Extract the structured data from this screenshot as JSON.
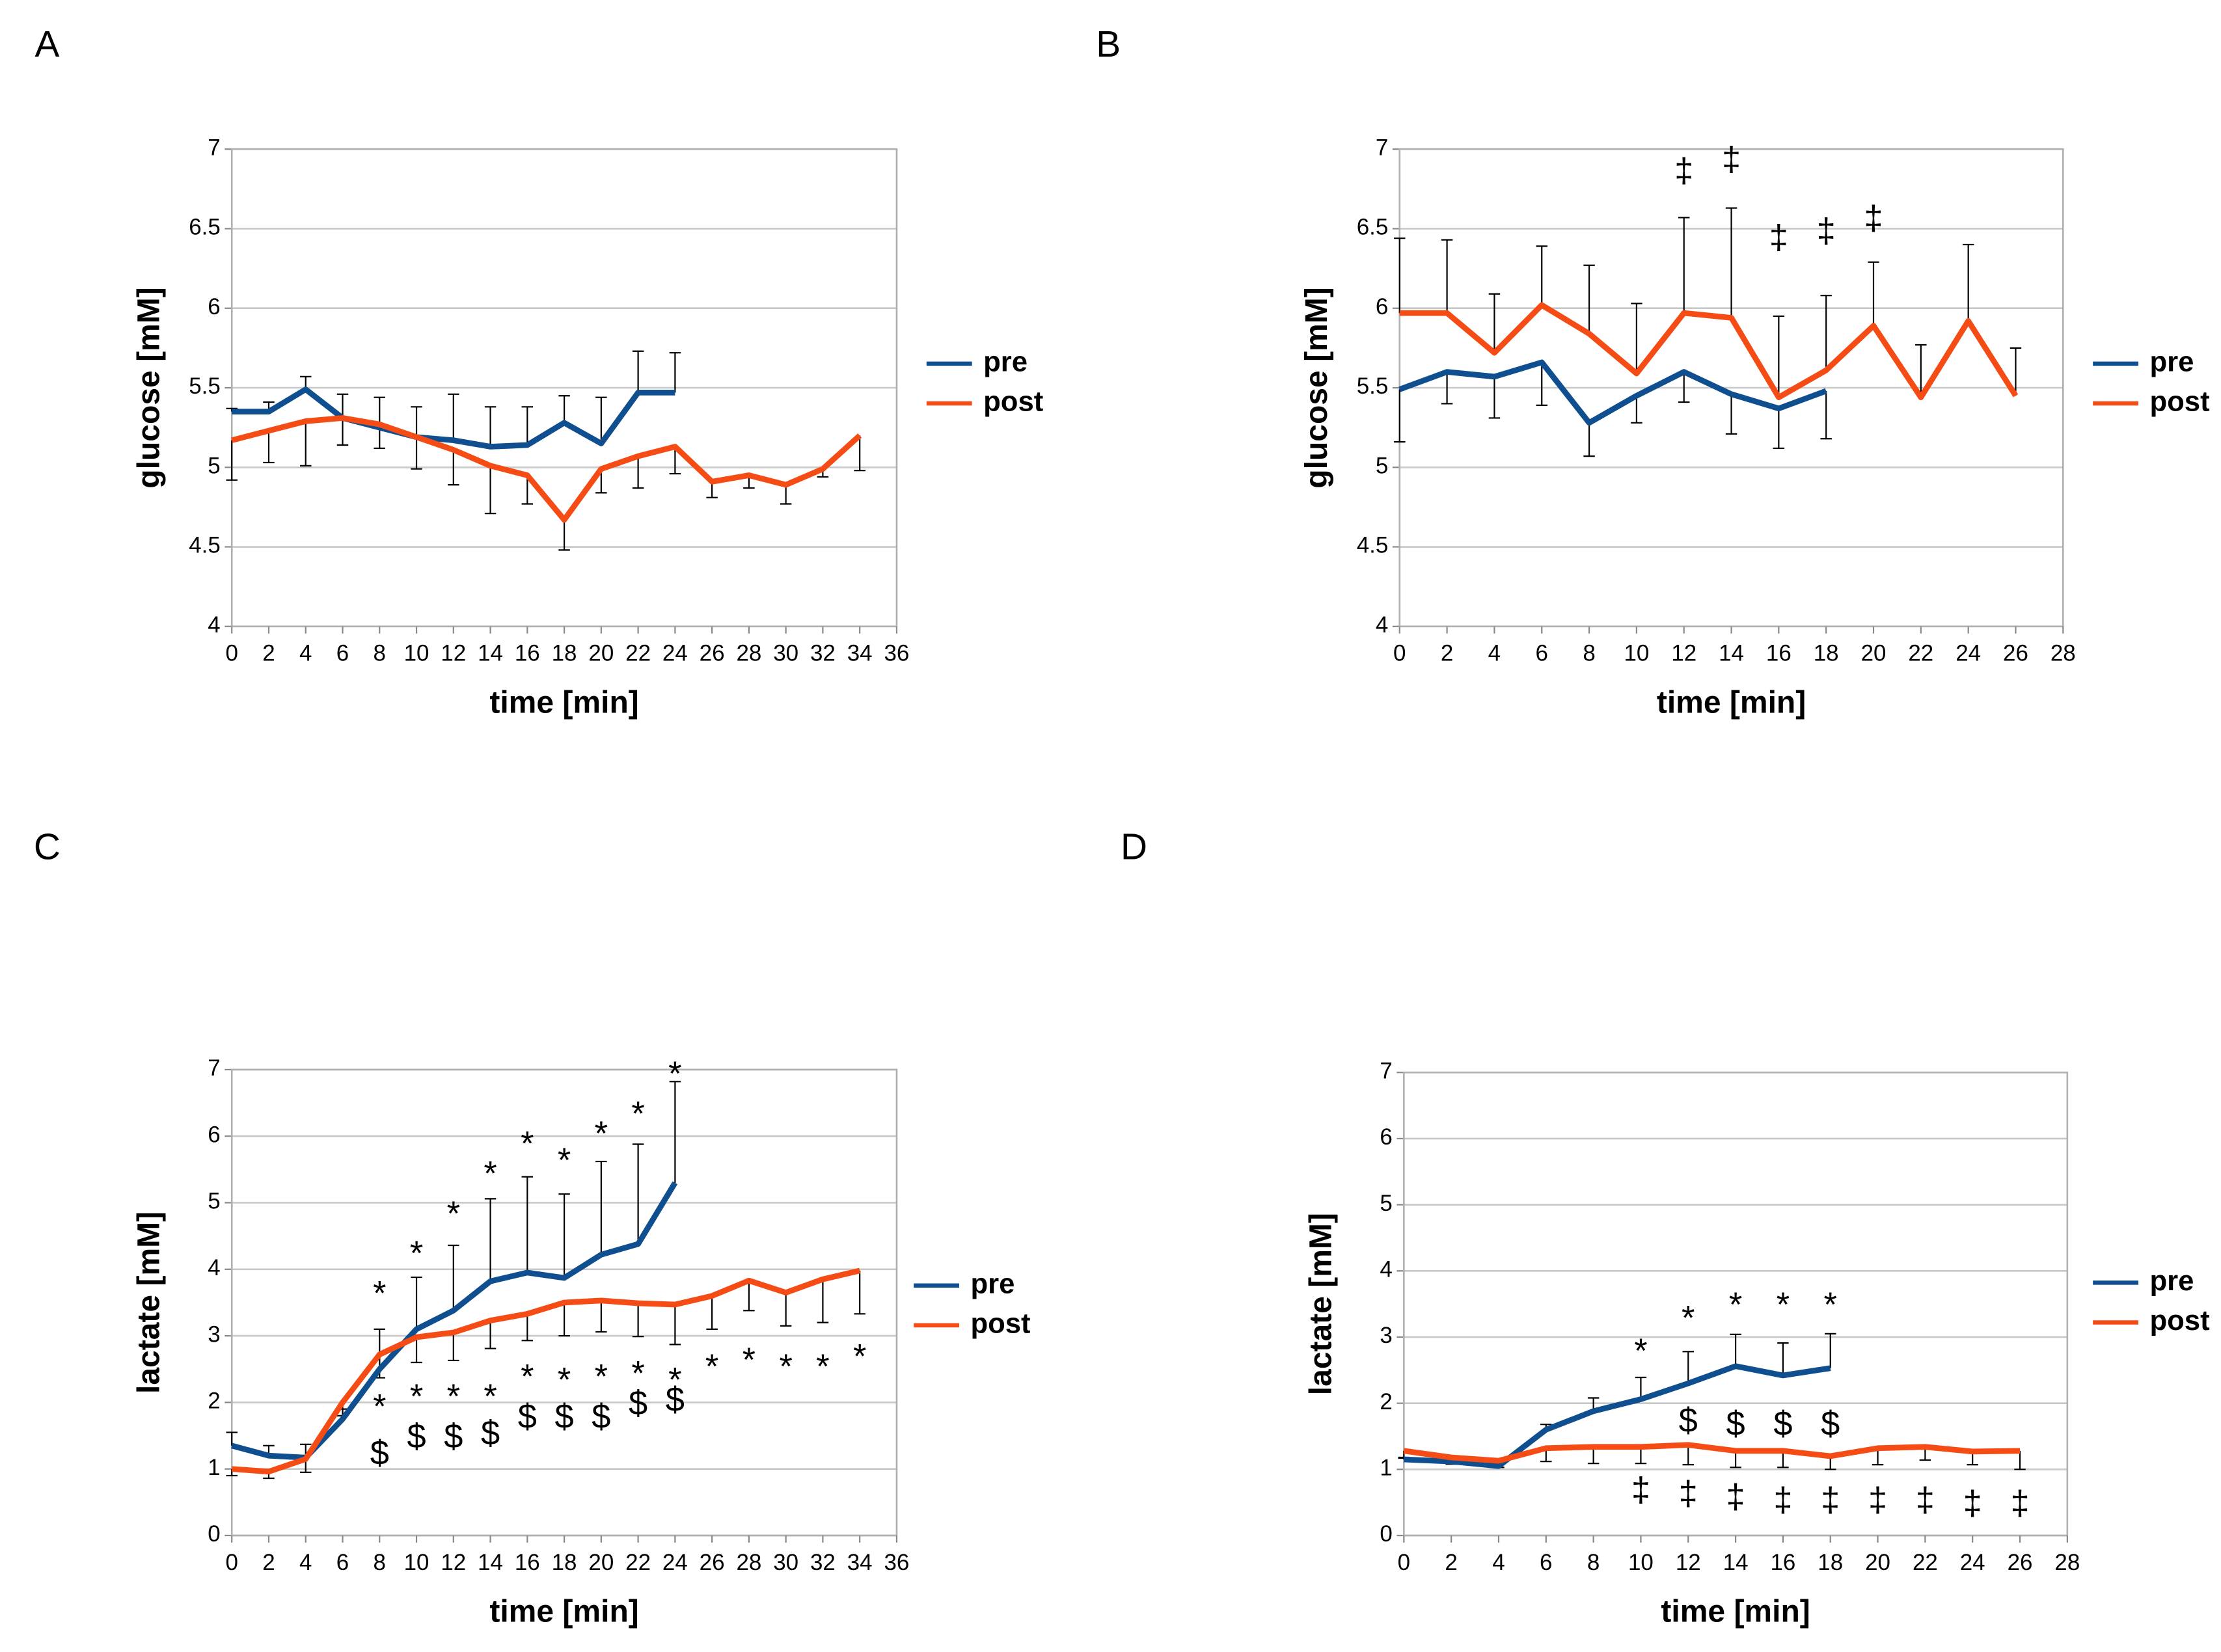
{
  "chart_data": [
    {
      "type": "line",
      "panel": "A",
      "xlabel": "time [min]",
      "ylabel": "glucose [mM]",
      "xlim": [
        0,
        36
      ],
      "xticks": [
        0,
        2,
        4,
        6,
        8,
        10,
        12,
        14,
        16,
        18,
        20,
        22,
        24,
        26,
        28,
        30,
        32,
        34,
        36
      ],
      "ylim": [
        4,
        7
      ],
      "yticks": [
        4,
        4.5,
        5,
        5.5,
        6,
        6.5,
        7
      ],
      "grid": true,
      "legend": "right",
      "series": [
        {
          "name": "pre",
          "color": "#0f4f8f",
          "error_side": "up",
          "x": [
            0,
            2,
            4,
            6,
            8,
            10,
            12,
            14,
            16,
            18,
            20,
            22,
            24
          ],
          "values": [
            5.35,
            5.35,
            5.49,
            5.31,
            5.25,
            5.19,
            5.17,
            5.13,
            5.14,
            5.28,
            5.15,
            5.47,
            5.47
          ],
          "errors": [
            0.02,
            0.06,
            0.08,
            0.15,
            0.19,
            0.19,
            0.29,
            0.25,
            0.24,
            0.17,
            0.29,
            0.26,
            0.25
          ]
        },
        {
          "name": "post",
          "color": "#f44c14",
          "error_side": "down",
          "x": [
            0,
            2,
            4,
            6,
            8,
            10,
            12,
            14,
            16,
            18,
            20,
            22,
            24,
            26,
            28,
            30,
            32,
            34
          ],
          "values": [
            5.17,
            5.23,
            5.29,
            5.31,
            5.27,
            5.19,
            5.11,
            5.01,
            4.95,
            4.67,
            4.99,
            5.07,
            5.13,
            4.91,
            4.95,
            4.89,
            4.99,
            5.2
          ],
          "errors": [
            0.25,
            0.2,
            0.28,
            0.17,
            0.15,
            0.2,
            0.22,
            0.3,
            0.18,
            0.19,
            0.15,
            0.2,
            0.17,
            0.1,
            0.08,
            0.12,
            0.05,
            0.22
          ]
        }
      ],
      "annotations": []
    },
    {
      "type": "line",
      "panel": "B",
      "xlabel": "time [min]",
      "ylabel": "glucose [mM]",
      "xlim": [
        0,
        28
      ],
      "xticks": [
        0,
        2,
        4,
        6,
        8,
        10,
        12,
        14,
        16,
        18,
        20,
        22,
        24,
        26,
        28
      ],
      "ylim": [
        4,
        7
      ],
      "yticks": [
        4,
        4.5,
        5,
        5.5,
        6,
        6.5,
        7
      ],
      "grid": true,
      "legend": "right",
      "series": [
        {
          "name": "pre",
          "color": "#0f4f8f",
          "error_side": "down",
          "x": [
            0,
            2,
            4,
            6,
            8,
            10,
            12,
            14,
            16,
            18
          ],
          "values": [
            5.49,
            5.6,
            5.57,
            5.66,
            5.28,
            5.45,
            5.6,
            5.46,
            5.37,
            5.48
          ],
          "errors": [
            0.33,
            0.2,
            0.26,
            0.27,
            0.21,
            0.17,
            0.19,
            0.25,
            0.25,
            0.3
          ]
        },
        {
          "name": "post",
          "color": "#f44c14",
          "error_side": "up",
          "x": [
            0,
            2,
            4,
            6,
            8,
            10,
            12,
            14,
            16,
            18,
            20,
            22,
            24,
            26
          ],
          "values": [
            5.97,
            5.97,
            5.72,
            6.02,
            5.84,
            5.59,
            5.97,
            5.94,
            5.44,
            5.61,
            5.89,
            5.44,
            5.92,
            5.45
          ],
          "errors": [
            0.47,
            0.46,
            0.37,
            0.37,
            0.43,
            0.44,
            0.6,
            0.69,
            0.51,
            0.47,
            0.4,
            0.33,
            0.48,
            0.3
          ]
        }
      ],
      "annotations": [
        {
          "text": "‡",
          "x": [
            12,
            14,
            16,
            18,
            20
          ],
          "y": [
            6.85,
            6.92,
            6.43,
            6.47,
            6.55
          ]
        }
      ]
    },
    {
      "type": "line",
      "panel": "C",
      "xlabel": "time [min]",
      "ylabel": "lactate [mM]",
      "xlim": [
        0,
        36
      ],
      "xticks": [
        0,
        2,
        4,
        6,
        8,
        10,
        12,
        14,
        16,
        18,
        20,
        22,
        24,
        26,
        28,
        30,
        32,
        34,
        36
      ],
      "ylim": [
        0,
        7
      ],
      "yticks": [
        0,
        1,
        2,
        3,
        4,
        5,
        6,
        7
      ],
      "grid": true,
      "legend": "right",
      "series": [
        {
          "name": "pre",
          "color": "#0f4f8f",
          "error_side": "up",
          "x": [
            0,
            2,
            4,
            6,
            8,
            10,
            12,
            14,
            16,
            18,
            20,
            22,
            24
          ],
          "values": [
            1.35,
            1.2,
            1.17,
            1.75,
            2.5,
            3.1,
            3.38,
            3.82,
            3.95,
            3.87,
            4.22,
            4.38,
            5.3
          ],
          "errors": [
            0.2,
            0.15,
            0.2,
            0.15,
            0.6,
            0.78,
            0.98,
            1.24,
            1.44,
            1.26,
            1.4,
            1.5,
            1.52
          ]
        },
        {
          "name": "post",
          "color": "#f44c14",
          "error_side": "down",
          "x": [
            0,
            2,
            4,
            6,
            8,
            10,
            12,
            14,
            16,
            18,
            20,
            22,
            24,
            26,
            28,
            30,
            32,
            34
          ],
          "values": [
            1.0,
            0.96,
            1.15,
            2.0,
            2.72,
            2.98,
            3.05,
            3.23,
            3.33,
            3.5,
            3.53,
            3.49,
            3.47,
            3.6,
            3.83,
            3.65,
            3.85,
            3.98
          ],
          "errors": [
            0.1,
            0.1,
            0.2,
            0.2,
            0.35,
            0.38,
            0.42,
            0.42,
            0.4,
            0.5,
            0.47,
            0.5,
            0.6,
            0.5,
            0.45,
            0.5,
            0.65,
            0.65
          ]
        }
      ],
      "annotations": [
        {
          "text": "*",
          "x": [
            8,
            10,
            12,
            14,
            16,
            18,
            20,
            22,
            24
          ],
          "y": [
            3.6,
            4.2,
            4.8,
            5.4,
            5.85,
            5.6,
            6.0,
            6.3,
            6.9
          ]
        },
        {
          "text": "*",
          "x": [
            8,
            10,
            12,
            14,
            16,
            18,
            20,
            22,
            24,
            26,
            28,
            30,
            32,
            34
          ],
          "y": [
            1.9,
            2.05,
            2.05,
            2.05,
            2.35,
            2.3,
            2.35,
            2.4,
            2.3,
            2.5,
            2.6,
            2.5,
            2.5,
            2.65
          ]
        },
        {
          "text": "$",
          "x": [
            8,
            10,
            12,
            14,
            16,
            18,
            20,
            22,
            24
          ],
          "y": [
            1.2,
            1.45,
            1.45,
            1.5,
            1.75,
            1.75,
            1.75,
            1.95,
            2.0
          ]
        }
      ]
    },
    {
      "type": "line",
      "panel": "D",
      "xlabel": "time [min]",
      "ylabel": "lactate [mM]",
      "xlim": [
        0,
        28
      ],
      "xticks": [
        0,
        2,
        4,
        6,
        8,
        10,
        12,
        14,
        16,
        18,
        20,
        22,
        24,
        26,
        28
      ],
      "ylim": [
        0,
        7
      ],
      "yticks": [
        0,
        1,
        2,
        3,
        4,
        5,
        6,
        7
      ],
      "grid": true,
      "legend": "right",
      "series": [
        {
          "name": "pre",
          "color": "#0f4f8f",
          "error_side": "up",
          "x": [
            0,
            2,
            4,
            6,
            8,
            10,
            12,
            14,
            16,
            18
          ],
          "values": [
            1.15,
            1.12,
            1.05,
            1.6,
            1.88,
            2.06,
            2.3,
            2.56,
            2.42,
            2.53
          ],
          "errors": [
            0.02,
            0.05,
            0.05,
            0.08,
            0.2,
            0.33,
            0.48,
            0.48,
            0.49,
            0.52
          ]
        },
        {
          "name": "post",
          "color": "#f44c14",
          "error_side": "down",
          "x": [
            0,
            2,
            4,
            6,
            8,
            10,
            12,
            14,
            16,
            18,
            20,
            22,
            24,
            26
          ],
          "values": [
            1.28,
            1.18,
            1.13,
            1.32,
            1.34,
            1.34,
            1.37,
            1.28,
            1.28,
            1.2,
            1.32,
            1.34,
            1.27,
            1.28
          ],
          "errors": [
            0.1,
            0.1,
            0.1,
            0.2,
            0.25,
            0.25,
            0.3,
            0.25,
            0.25,
            0.2,
            0.25,
            0.2,
            0.2,
            0.28
          ]
        }
      ],
      "annotations": [
        {
          "text": "*",
          "x": [
            10,
            12,
            14,
            16,
            18
          ],
          "y": [
            2.75,
            3.25,
            3.45,
            3.45,
            3.45
          ]
        },
        {
          "text": "$",
          "x": [
            12,
            14,
            16,
            18
          ],
          "y": [
            1.7,
            1.65,
            1.65,
            1.65
          ]
        },
        {
          "text": "‡",
          "x": [
            10,
            12,
            14,
            16,
            18,
            20,
            22,
            24,
            26
          ],
          "y": [
            0.65,
            0.6,
            0.55,
            0.5,
            0.5,
            0.5,
            0.5,
            0.45,
            0.45
          ]
        }
      ]
    }
  ]
}
